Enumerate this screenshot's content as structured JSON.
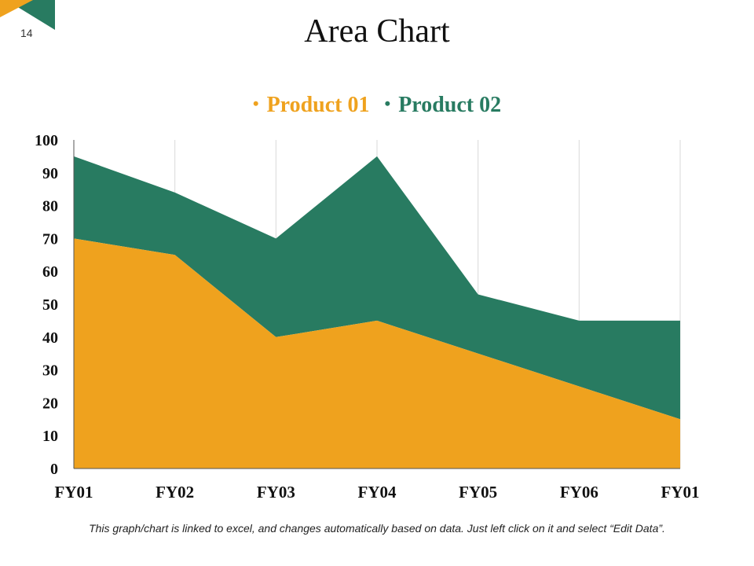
{
  "slide": {
    "page_number": "14",
    "title": "Area Chart",
    "footnote": "This graph/chart is linked to excel, and changes automatically based on data. Just left click on it and select “Edit Data”."
  },
  "colors": {
    "product01": "#EFA21E",
    "product02": "#287B61",
    "axis": "#555555",
    "grid": "#D9D9D9"
  },
  "chart_data": {
    "type": "area",
    "stacked": true,
    "title": "",
    "categories": [
      "FY01",
      "FY02",
      "FY03",
      "FY04",
      "FY05",
      "FY06",
      "FY01"
    ],
    "series": [
      {
        "name": "Product 01",
        "values": [
          70,
          65,
          40,
          45,
          35,
          25,
          15
        ]
      },
      {
        "name": "Product 02",
        "values": [
          25,
          19,
          30,
          50,
          18,
          20,
          30
        ]
      }
    ],
    "xlabel": "",
    "ylabel": "",
    "ylim": [
      0,
      100
    ],
    "yticks": [
      0,
      10,
      20,
      30,
      40,
      50,
      60,
      70,
      80,
      90,
      100
    ],
    "grid": "vertical",
    "legend": "top"
  }
}
